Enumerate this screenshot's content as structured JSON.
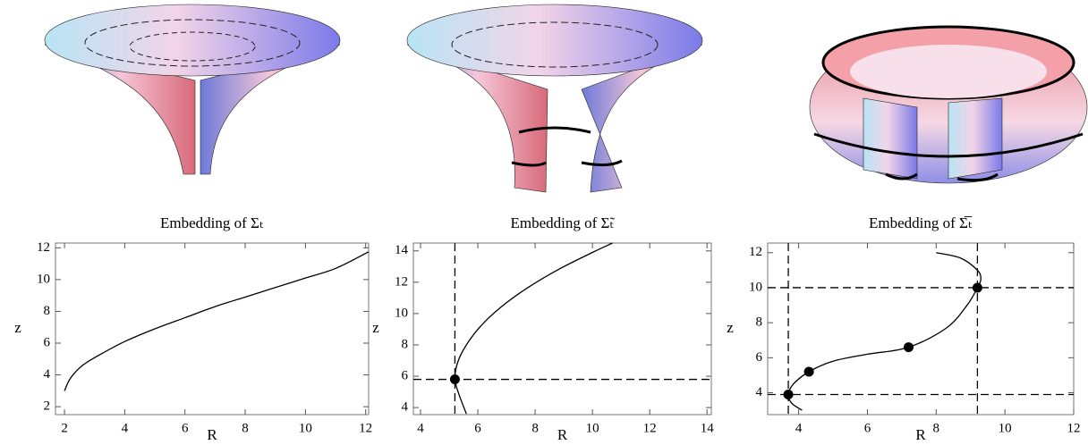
{
  "chart_data": [
    {
      "type": "line",
      "title": "Embedding of Σₜ",
      "x_label": "R",
      "y_label": "z",
      "xlim": [
        1.7,
        12.1
      ],
      "ylim": [
        1.5,
        12.3
      ],
      "xticks": [
        2,
        4,
        6,
        8,
        10,
        12
      ],
      "yticks": [
        2,
        4,
        6,
        8,
        10,
        12
      ],
      "series": [
        {
          "color": "#000000",
          "x": [
            2,
            2.2,
            2.6,
            3.2,
            4,
            5,
            6,
            7,
            8,
            9,
            10,
            11,
            12.1
          ],
          "values": [
            3,
            3.8,
            4.6,
            5.3,
            6.1,
            6.9,
            7.6,
            8.3,
            8.9,
            9.5,
            10.1,
            10.7,
            11.75
          ]
        }
      ]
    },
    {
      "type": "line",
      "title": "Embedding of Σ̃ₜ",
      "x_label": "R",
      "y_label": "z",
      "xlim": [
        3.75,
        14.15
      ],
      "ylim": [
        3.55,
        14.5
      ],
      "xticks": [
        4,
        6,
        8,
        10,
        12,
        14
      ],
      "yticks": [
        4,
        6,
        8,
        10,
        12,
        14
      ],
      "series": [
        {
          "color": "#000000",
          "x": [
            5.6,
            5.35,
            5.2,
            5.3,
            5.6,
            6.1,
            6.8,
            7.7,
            8.8,
            10,
            10.7
          ],
          "values": [
            3.6,
            4.8,
            5.8,
            6.9,
            8,
            9.2,
            10.4,
            11.6,
            12.8,
            13.9,
            14.5
          ]
        }
      ],
      "points": {
        "x": [
          5.2
        ],
        "values": [
          5.8
        ]
      },
      "vlines": [
        5.2
      ],
      "hlines": [
        5.8
      ]
    },
    {
      "type": "line",
      "title": "Embedding of Σ̅ₜ",
      "x_label": "R",
      "y_label": "z",
      "xlim": [
        3.1,
        12
      ],
      "ylim": [
        2.75,
        12.55
      ],
      "xticks": [
        4,
        6,
        8,
        10,
        12
      ],
      "yticks": [
        4,
        6,
        8,
        10,
        12
      ],
      "series": [
        {
          "color": "#000000",
          "x": [
            8,
            8.7,
            9.2,
            9.3,
            9.2,
            8.9,
            8.3,
            7.2,
            6,
            5,
            4.3,
            3.85,
            3.7,
            3.8,
            4.1
          ],
          "values": [
            12,
            11.7,
            11,
            10.5,
            10,
            9,
            7.7,
            6.6,
            6.2,
            5.8,
            5.2,
            4.5,
            3.9,
            3.4,
            3
          ]
        }
      ],
      "points": {
        "x": [
          3.7,
          4.3,
          7.2,
          9.2
        ],
        "values": [
          3.9,
          5.2,
          6.6,
          10
        ]
      },
      "vlines": [
        3.7,
        9.2
      ],
      "hlines": [
        3.9,
        10
      ]
    }
  ]
}
